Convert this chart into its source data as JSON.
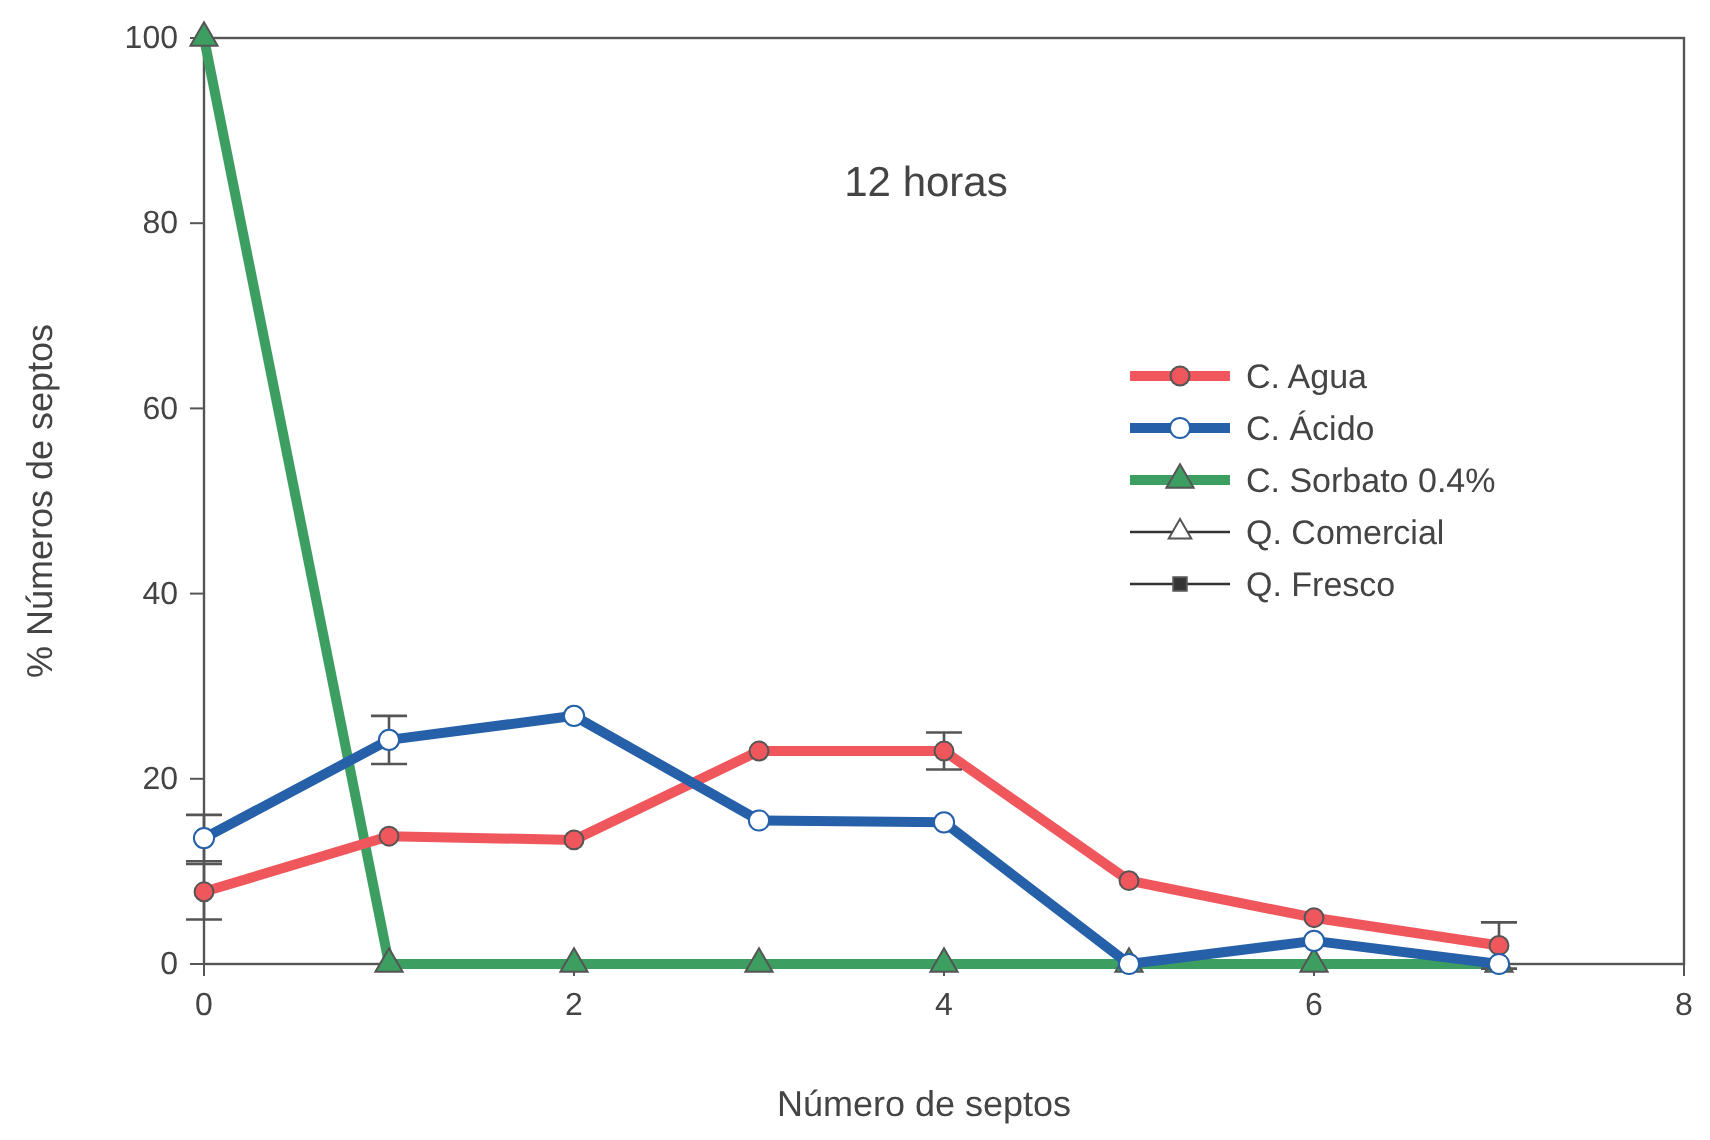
{
  "chart_data": {
    "type": "line",
    "title": "12 horas",
    "xlabel": "Número de septos",
    "ylabel": "% Números de septos",
    "x": [
      0,
      1,
      2,
      3,
      4,
      5,
      6,
      7
    ],
    "xlim": [
      0,
      8
    ],
    "xticks": [
      0,
      2,
      4,
      6,
      8
    ],
    "ylim": [
      0,
      100
    ],
    "yticks": [
      0,
      20,
      40,
      60,
      80,
      100
    ],
    "grid": false,
    "legend": "right",
    "series": [
      {
        "name": "C. Agua",
        "color": "#f0575c",
        "marker": "circle",
        "values": [
          7.8,
          13.8,
          13.4,
          23,
          23,
          9,
          5,
          2
        ],
        "errors": [
          3,
          null,
          null,
          null,
          2,
          null,
          null,
          2.5
        ]
      },
      {
        "name": "C. Ácido",
        "color": "#2560a8",
        "marker": "circle",
        "values": [
          13.6,
          24.2,
          26.8,
          15.5,
          15.3,
          0,
          2.5,
          0
        ],
        "errors": [
          2.5,
          2.6,
          null,
          null,
          null,
          null,
          null,
          null
        ]
      },
      {
        "name": "C. Sorbato 0.4%",
        "color": "#3d9e62",
        "marker": "triangle",
        "values": [
          100,
          0,
          0,
          0,
          0,
          0,
          0,
          0
        ]
      },
      {
        "name": "Q. Comercial",
        "color": "#333333",
        "marker": "triangle",
        "values": [
          null,
          null,
          null,
          null,
          null,
          null,
          null,
          null
        ]
      },
      {
        "name": "Q. Fresco",
        "color": "#333333",
        "marker": "square",
        "values": [
          null,
          null,
          null,
          null,
          null,
          null,
          null,
          null
        ]
      }
    ]
  }
}
